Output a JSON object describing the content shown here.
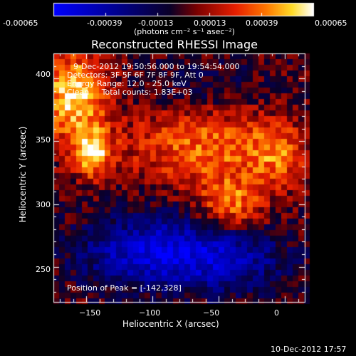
{
  "colorbar": {
    "tick_labels": [
      "-0.00065",
      "-0.00039",
      "-0.00013",
      "0.00013",
      "0.00039",
      "0.00065"
    ],
    "units": "(photons cm⁻² s⁻¹ asec⁻²)",
    "range": [
      -0.00065,
      0.00065
    ],
    "colors": [
      "#0000ff",
      "#000090",
      "#000000",
      "#a00000",
      "#ff3000",
      "#ff9000",
      "#ffff40",
      "#ffffff"
    ]
  },
  "chart_data": {
    "type": "heatmap",
    "title": "Reconstructed RHESSI Image",
    "xlabel": "Heliocentric X (arcsec)",
    "ylabel": "Heliocentric Y (arcsec)",
    "xlim": [
      -175,
      15
    ],
    "ylim": [
      222,
      420
    ],
    "x_ticks": [
      -150,
      -100,
      -50,
      0
    ],
    "y_ticks": [
      250,
      300,
      350,
      400
    ],
    "x_tick_labels": [
      "−150",
      "−100",
      "−50",
      "0"
    ],
    "y_tick_labels": [
      "250",
      "300",
      "350",
      "400"
    ],
    "peak_position": [
      -142,
      328
    ],
    "total_counts": "1.83E+03",
    "energy_range_kev": [
      12.0,
      25.0
    ],
    "time_range": [
      "9-Dec-2012 19:50:56.000",
      "19:54:54.000"
    ]
  },
  "annotations": {
    "line1": "9-Dec-2012 19:50:56.000 to 19:54:54.000",
    "line2": "Detectors: 3F 5F 6F 7F 8F 9F, Att 0",
    "line3": "Energy Range: 12.0 - 25.0 keV",
    "line4": "Clean     Total counts: 1.83E+03",
    "peak": "Position of Peak = [-142,328]"
  },
  "footer": {
    "date": "10-Dec-2012 17:57"
  }
}
